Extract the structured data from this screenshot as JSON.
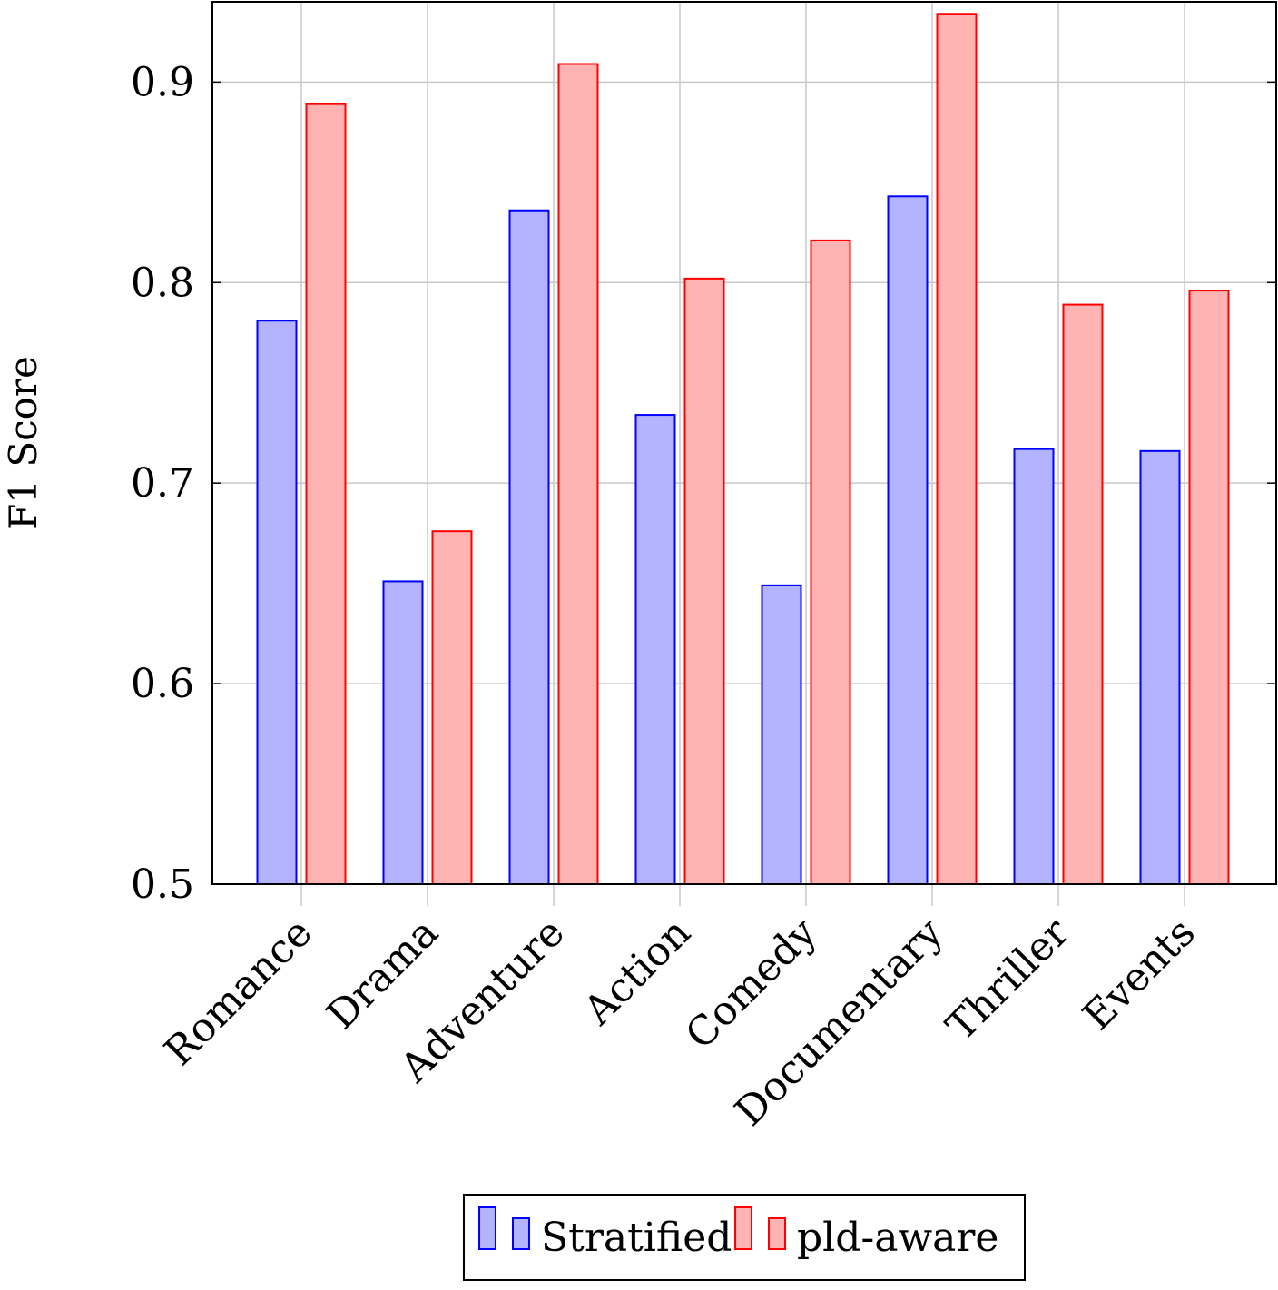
{
  "chart_data": {
    "type": "bar",
    "title": "",
    "xlabel": "",
    "ylabel": "F1 Score",
    "categories": [
      "Romance",
      "Drama",
      "Adventure",
      "Action",
      "Comedy",
      "Documentary",
      "Thriller",
      "Events"
    ],
    "series": [
      {
        "name": "Stratified",
        "values": [
          0.781,
          0.651,
          0.836,
          0.734,
          0.649,
          0.843,
          0.717,
          0.716
        ]
      },
      {
        "name": "pld-aware",
        "values": [
          0.889,
          0.676,
          0.909,
          0.802,
          0.821,
          0.934,
          0.789,
          0.796
        ]
      }
    ],
    "ylim": [
      0.5,
      0.94
    ],
    "yticks": [
      0.5,
      0.6,
      0.7,
      0.8,
      0.9
    ],
    "ytick_labels": [
      "0.5",
      "0.6",
      "0.7",
      "0.8",
      "0.9"
    ],
    "grid": true,
    "legend": "bottom-center",
    "colors": {
      "Stratified": {
        "fill": "#b3b3ff",
        "stroke": "#0000ff"
      },
      "pld-aware": {
        "fill": "#ffb3b3",
        "stroke": "#ff0000"
      }
    }
  }
}
